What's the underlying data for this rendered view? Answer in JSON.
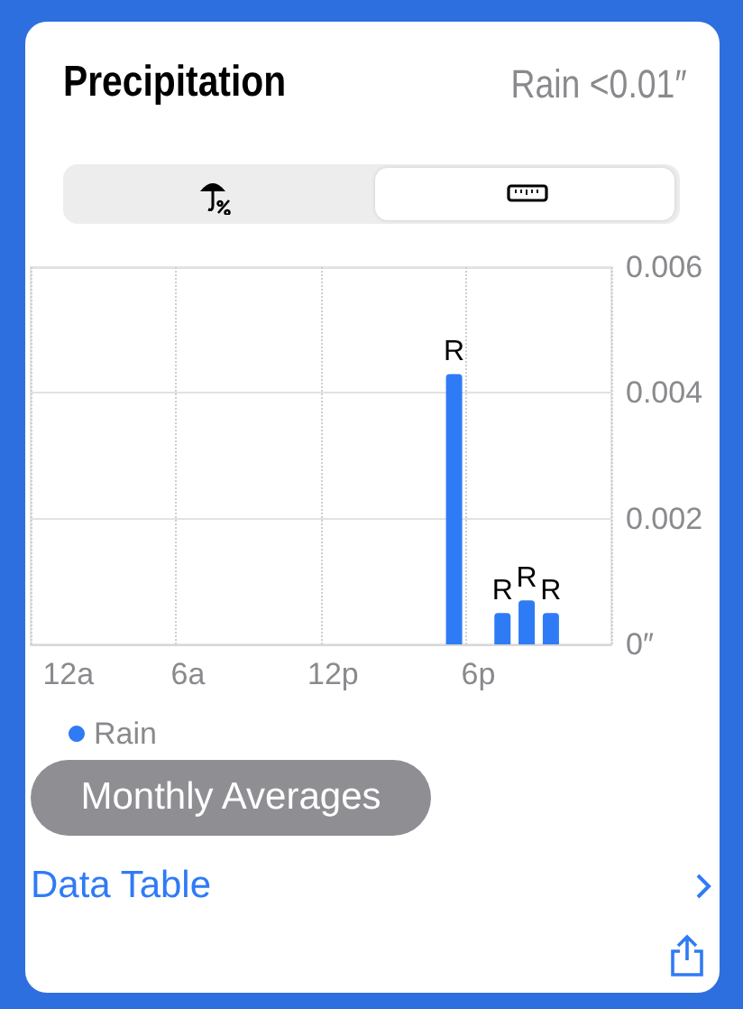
{
  "chart_data": {
    "type": "bar",
    "title": "Precipitation",
    "subtitle": "Rain <0.01″",
    "categories": [
      "12a",
      null,
      null,
      null,
      null,
      null,
      "6a",
      null,
      null,
      null,
      null,
      null,
      "12p",
      null,
      null,
      null,
      null,
      null,
      "6p",
      null,
      null,
      null,
      null,
      null
    ],
    "series": [
      {
        "name": "Rain",
        "color": "#2f7bf5",
        "values": [
          null,
          null,
          null,
          null,
          null,
          null,
          null,
          null,
          null,
          null,
          null,
          null,
          null,
          null,
          null,
          null,
          null,
          0.0043,
          null,
          0.0005,
          0.0007,
          0.0005,
          null,
          null
        ],
        "value_labels": [
          null,
          null,
          null,
          null,
          null,
          null,
          null,
          null,
          null,
          null,
          null,
          null,
          null,
          null,
          null,
          null,
          null,
          "R",
          null,
          "R",
          "R",
          "R",
          null,
          null
        ]
      }
    ],
    "ylim": [
      0,
      0.006
    ],
    "yticks": [
      {
        "value": 0,
        "label": "0″"
      },
      0.002,
      0.004,
      0.006
    ],
    "grid": true,
    "legend": "bottom left",
    "annotations": [
      "Monthly Averages",
      "Data Table"
    ]
  }
}
